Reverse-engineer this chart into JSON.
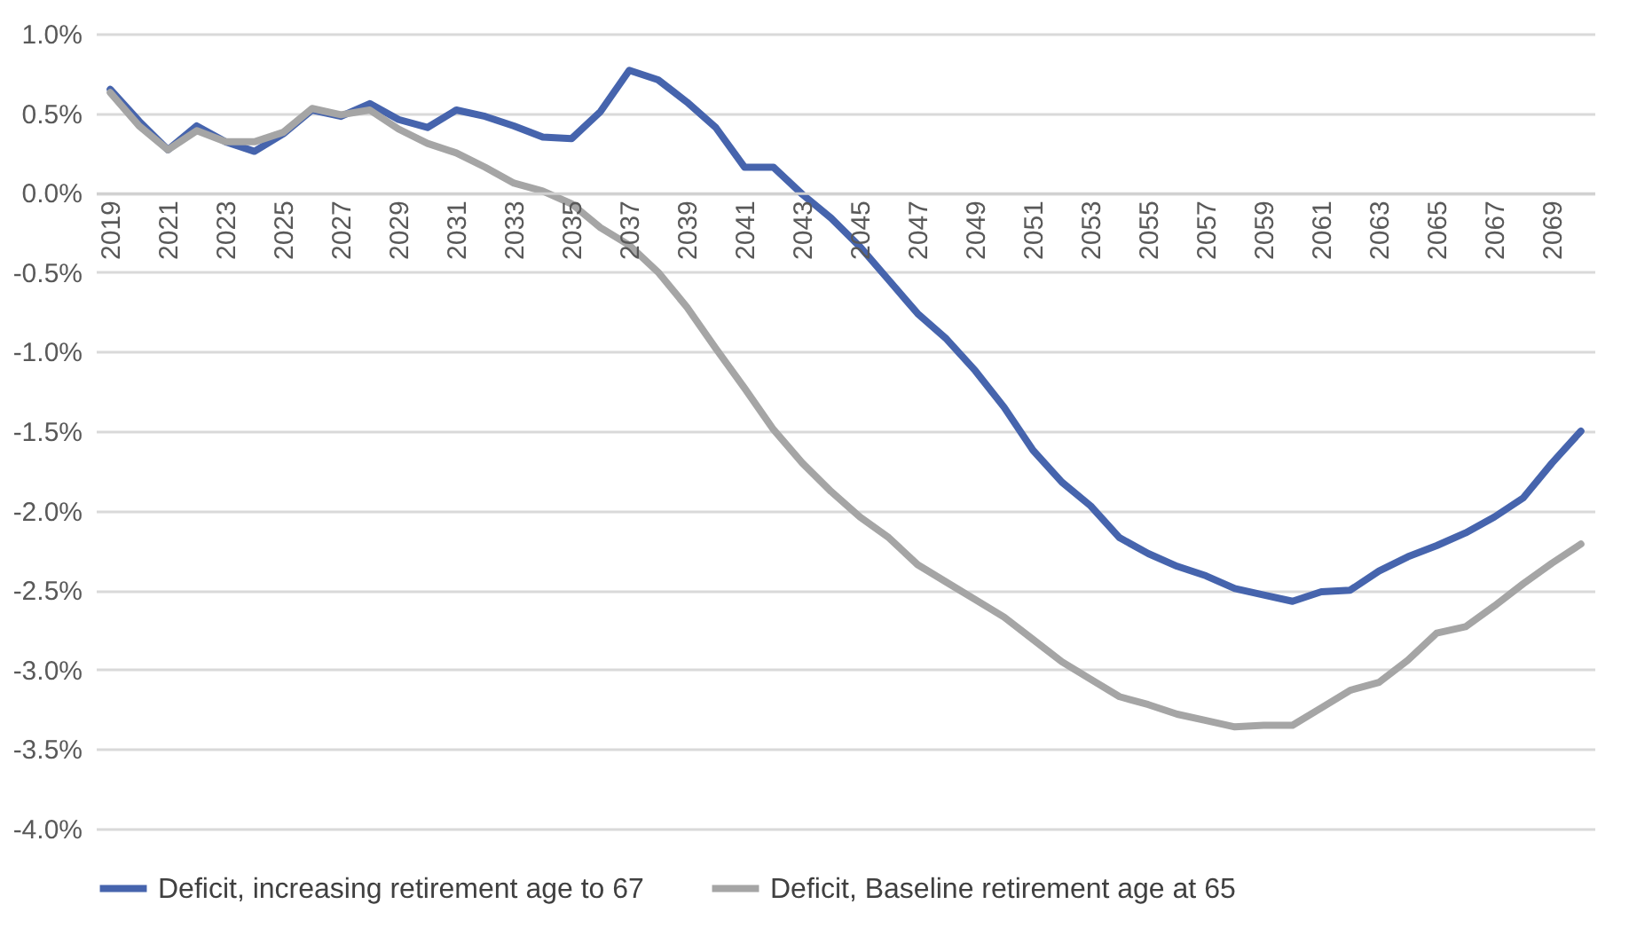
{
  "chart_data": {
    "type": "line",
    "categories": [
      "2019",
      null,
      "2021",
      null,
      "2023",
      null,
      "2025",
      null,
      "2027",
      null,
      "2029",
      null,
      "2031",
      null,
      "2033",
      null,
      "2035",
      null,
      "2037",
      null,
      "2039",
      null,
      "2041",
      null,
      "2043",
      null,
      "2045",
      null,
      "2047",
      null,
      "2049",
      null,
      "2051",
      null,
      "2053",
      null,
      "2055",
      null,
      "2057",
      null,
      "2059",
      null,
      "2061",
      null,
      "2063",
      null,
      "2065",
      null,
      "2067",
      null,
      "2069",
      null
    ],
    "series": [
      {
        "name": "Deficit, increasing retirement age to 67",
        "color": "#4664ad",
        "values": [
          0.65,
          0.45,
          0.27,
          0.42,
          0.32,
          0.26,
          0.37,
          0.52,
          0.48,
          0.56,
          0.46,
          0.41,
          0.52,
          0.48,
          0.42,
          0.35,
          0.34,
          0.51,
          0.77,
          0.71,
          0.57,
          0.41,
          0.16,
          0.16,
          -0.01,
          -0.16,
          -0.34,
          -0.55,
          -0.76,
          -0.92,
          -1.12,
          -1.35,
          -1.62,
          -1.82,
          -1.97,
          -2.17,
          -2.27,
          -2.35,
          -2.41,
          -2.49,
          -2.53,
          -2.57,
          -2.51,
          -2.5,
          -2.38,
          -2.29,
          -2.22,
          -2.14,
          -2.04,
          -1.92,
          -1.7,
          -1.5
        ]
      },
      {
        "name": "Deficit, Baseline retirement age at 65",
        "color": "#a5a5a5",
        "values": [
          0.63,
          0.42,
          0.27,
          0.39,
          0.32,
          0.32,
          0.38,
          0.53,
          0.49,
          0.52,
          0.4,
          0.31,
          0.25,
          0.16,
          0.06,
          0.01,
          -0.07,
          -0.22,
          -0.33,
          -0.5,
          -0.72,
          -0.98,
          -1.23,
          -1.49,
          -1.7,
          -1.88,
          -2.04,
          -2.17,
          -2.34,
          -2.45,
          -2.56,
          -2.67,
          -2.81,
          -2.95,
          -3.06,
          -3.17,
          -3.22,
          -3.28,
          -3.32,
          -3.36,
          -3.35,
          -3.35,
          -3.24,
          -3.13,
          -3.08,
          -2.94,
          -2.77,
          -2.73,
          -2.6,
          -2.46,
          -2.33,
          -2.21
        ]
      }
    ],
    "ylim": [
      -4,
      1
    ],
    "yticks": [
      {
        "value": -4,
        "label": "-4.0%"
      },
      {
        "value": -3.5,
        "label": "-3.5%"
      },
      {
        "value": -3,
        "label": "-3.0%"
      },
      {
        "value": -2.5,
        "label": "-2.5%"
      },
      {
        "value": -2,
        "label": "-2.0%"
      },
      {
        "value": -1.5,
        "label": "-1.5%"
      },
      {
        "value": -1,
        "label": "-1.0%"
      },
      {
        "value": -0.5,
        "label": "-0.5%"
      },
      {
        "value": 0,
        "label": "0.0%"
      },
      {
        "value": 0.5,
        "label": "0.5%"
      },
      {
        "value": 1,
        "label": "1.0%"
      }
    ],
    "grid": "y",
    "legend": "bottom",
    "line_style": "solid",
    "marker": "none"
  }
}
